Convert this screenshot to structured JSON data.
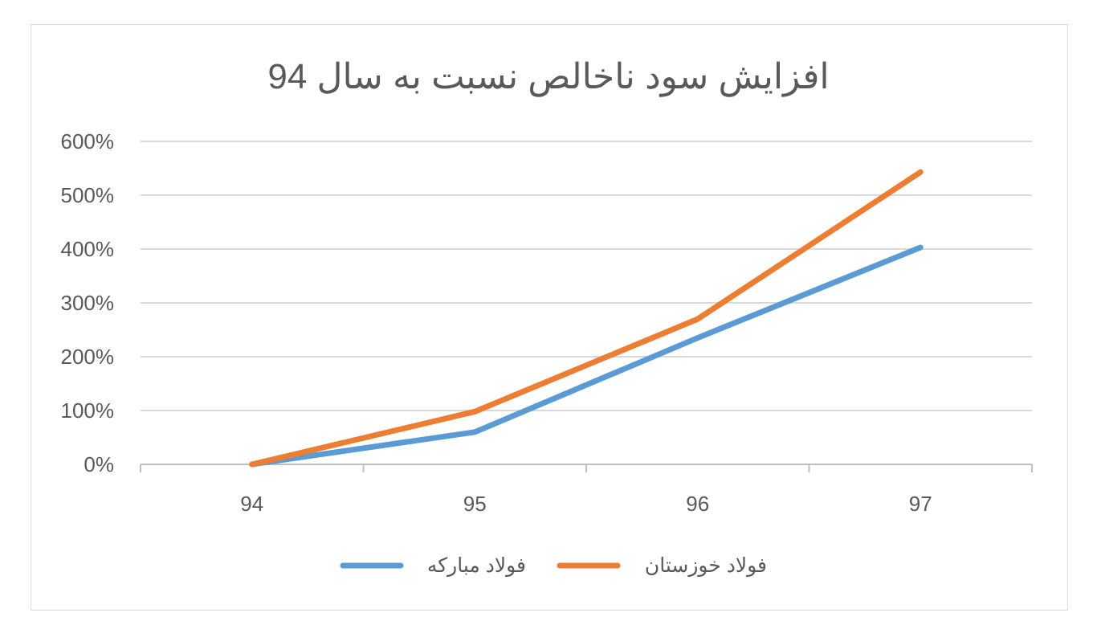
{
  "chart_data": {
    "type": "line",
    "title": "افزایش  سود ناخالص نسبت به سال 94",
    "categories": [
      "94",
      "95",
      "96",
      "97"
    ],
    "y_ticks": [
      "0%",
      "100%",
      "200%",
      "300%",
      "400%",
      "500%",
      "600%"
    ],
    "ylim": [
      0,
      600
    ],
    "y_unit": "%",
    "grid": true,
    "legend_position": "bottom",
    "series": [
      {
        "name": "فولاد مبارکه",
        "color": "#5b9bd5",
        "values": [
          0,
          60,
          235,
          403
        ]
      },
      {
        "name": "فولاد خوزستان",
        "color": "#ed7d31",
        "values": [
          0,
          98,
          270,
          543
        ]
      }
    ]
  }
}
